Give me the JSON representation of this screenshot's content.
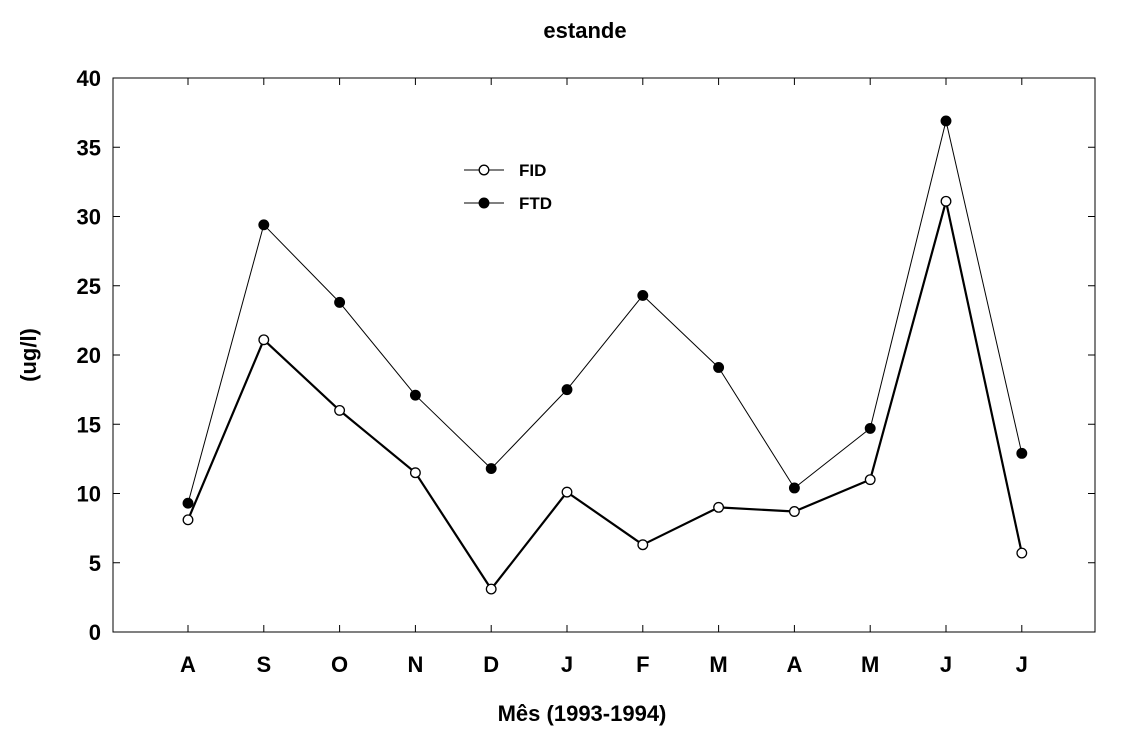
{
  "chart_data": {
    "type": "line",
    "title": "estande",
    "xlabel": "Mês (1993-1994)",
    "ylabel": "(ug/l)",
    "categories": [
      "A",
      "S",
      "O",
      "N",
      "D",
      "J",
      "F",
      "M",
      "A",
      "M",
      "J",
      "J"
    ],
    "ylim": [
      0,
      40
    ],
    "yticks": [
      0,
      5,
      10,
      15,
      20,
      25,
      30,
      35,
      40
    ],
    "legend_position": "upper-center",
    "grid": false,
    "series": [
      {
        "name": "FID",
        "marker": "open-circle",
        "line_style": "thick",
        "values": [
          8.1,
          21.1,
          16.0,
          11.5,
          3.1,
          10.1,
          6.3,
          9.0,
          8.7,
          11.0,
          31.1,
          5.7
        ]
      },
      {
        "name": "FTD",
        "marker": "filled-circle",
        "line_style": "thin",
        "values": [
          9.3,
          29.4,
          23.8,
          17.1,
          11.8,
          17.5,
          24.3,
          19.1,
          10.4,
          14.7,
          36.9,
          12.9
        ]
      }
    ]
  }
}
